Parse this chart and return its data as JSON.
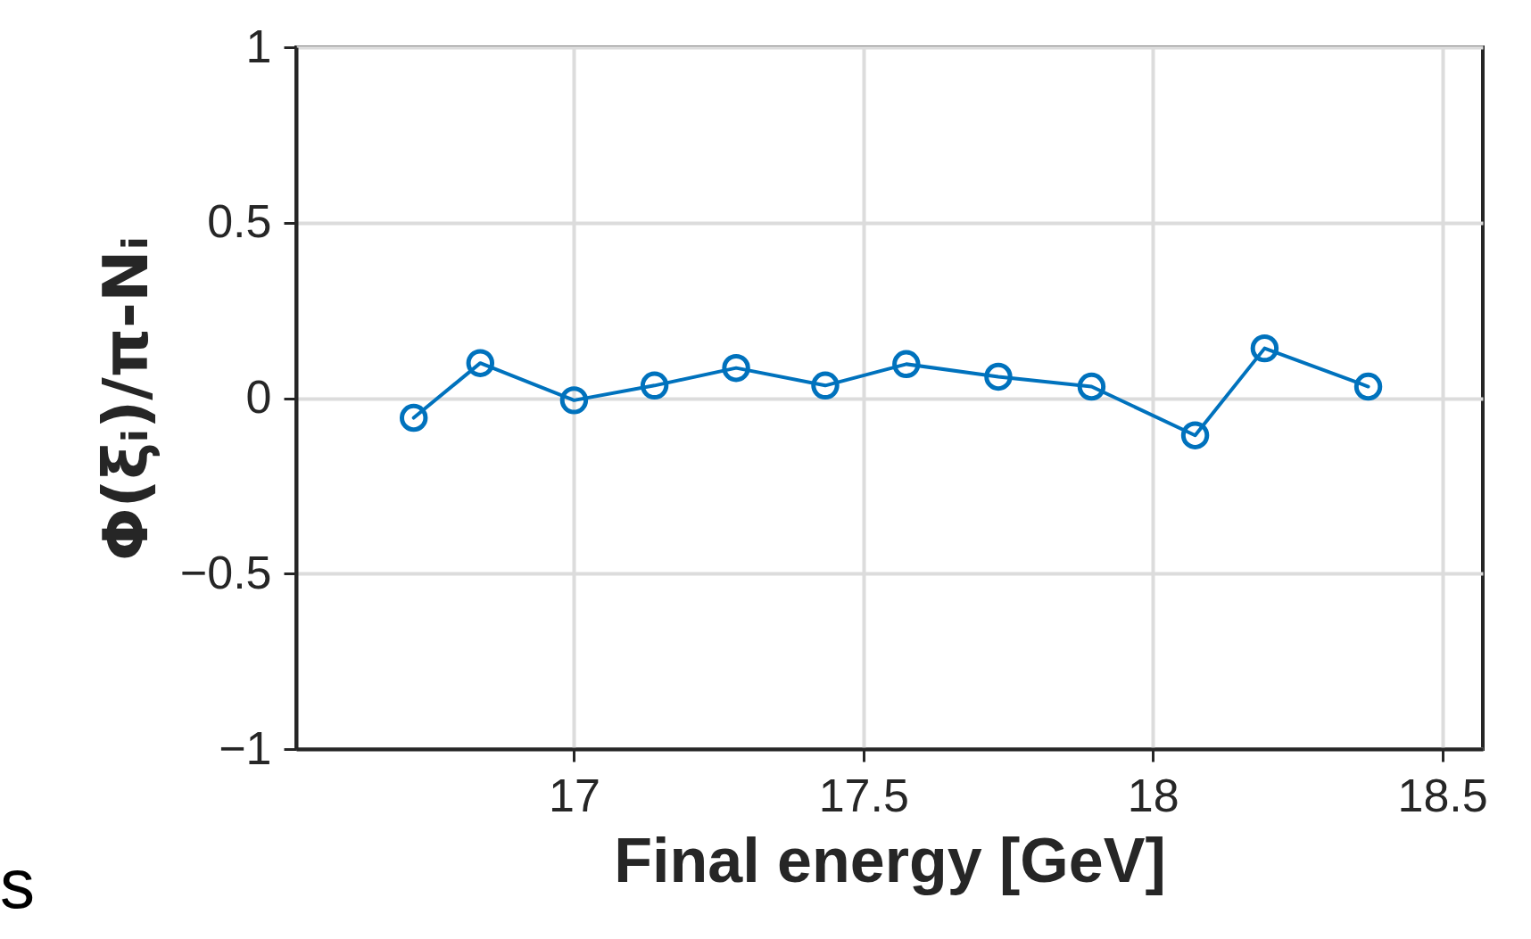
{
  "chart_data": {
    "type": "line",
    "xlabel": "Final energy [GeV]",
    "ylabel": "Φ(ξᵢ)/π-Nᵢ",
    "x": [
      16.723,
      16.838,
      17.0,
      17.139,
      17.28,
      17.434,
      17.574,
      17.733,
      17.894,
      18.073,
      18.193,
      18.372
    ],
    "series": [
      {
        "color": "#0072bd",
        "values": [
          -0.056,
          0.1,
          -0.006,
          0.036,
          0.086,
          0.036,
          0.097,
          0.061,
          0.033,
          -0.106,
          0.142,
          0.033
        ]
      }
    ],
    "xlim": [
      16.52,
      18.57
    ],
    "xticks": [
      17,
      17.5,
      18,
      18.5
    ],
    "ylim": [
      -1,
      1
    ],
    "yticks": [
      -1,
      -0.5,
      0,
      0.5,
      1
    ],
    "grid": true,
    "marker": "circle",
    "line_style": "solid",
    "annotations": [
      "s"
    ]
  }
}
